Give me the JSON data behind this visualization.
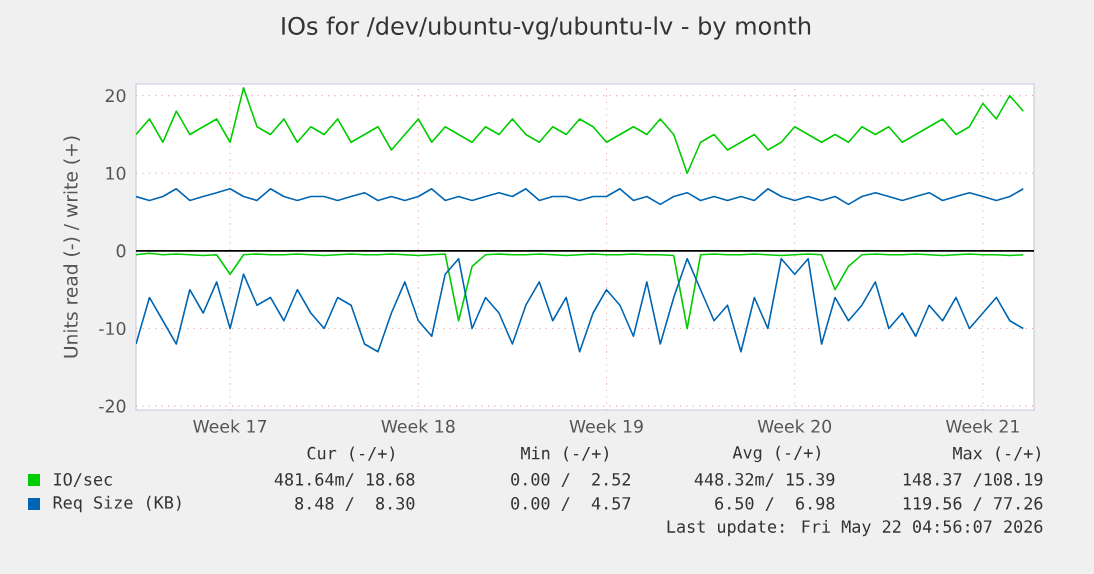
{
  "chart_data": {
    "type": "line",
    "title": "IOs for /dev/ubuntu-vg/ubuntu-lv - by month",
    "ylabel": "Units read (-) / write (+)",
    "categories": [
      null,
      null,
      null,
      null,
      null,
      null,
      null,
      "Week 17",
      null,
      null,
      null,
      null,
      null,
      null,
      null,
      null,
      null,
      null,
      null,
      null,
      null,
      "Week 18",
      null,
      null,
      null,
      null,
      null,
      null,
      null,
      null,
      null,
      null,
      null,
      null,
      null,
      "Week 19",
      null,
      null,
      null,
      null,
      null,
      null,
      null,
      null,
      null,
      null,
      null,
      null,
      null,
      "Week 20",
      null,
      null,
      null,
      null,
      null,
      null,
      null,
      null,
      null,
      null,
      null,
      null,
      null,
      "Week 21",
      null,
      null,
      null
    ],
    "ylim": [
      -20.5,
      21.5
    ],
    "yticks": [
      -20,
      -10,
      0,
      10,
      20
    ],
    "grid": true,
    "legend": "bottom",
    "marker": "none",
    "line_style": "solid",
    "ref_lines": [
      {
        "axis": "y",
        "value": 0,
        "color": "#000000"
      }
    ],
    "series": [
      {
        "name": "IO/sec",
        "color": "#00cc00",
        "values": [
          15,
          17,
          14,
          18,
          15,
          16,
          17,
          14,
          21,
          16,
          15,
          17,
          14,
          16,
          15,
          17,
          14,
          15,
          16,
          13,
          15,
          17,
          14,
          16,
          15,
          14,
          16,
          15,
          17,
          15,
          14,
          16,
          15,
          17,
          16,
          14,
          15,
          16,
          15,
          17,
          15,
          10,
          14,
          15,
          13,
          14,
          15,
          13,
          14,
          16,
          15,
          14,
          15,
          14,
          16,
          15,
          16,
          14,
          15,
          16,
          17,
          15,
          16,
          19,
          17,
          20,
          18
        ]
      },
      {
        "color": "#00cc00",
        "values": [
          -0.5,
          -0.3,
          -0.5,
          -0.4,
          -0.5,
          -0.6,
          -0.5,
          -3,
          -0.5,
          -0.4,
          -0.5,
          -0.5,
          -0.4,
          -0.5,
          -0.6,
          -0.5,
          -0.4,
          -0.5,
          -0.5,
          -0.4,
          -0.5,
          -0.6,
          -0.5,
          -0.4,
          -9,
          -2,
          -0.5,
          -0.4,
          -0.5,
          -0.5,
          -0.4,
          -0.5,
          -0.6,
          -0.5,
          -0.4,
          -0.5,
          -0.5,
          -0.4,
          -0.5,
          -0.5,
          -0.6,
          -10,
          -0.5,
          -0.4,
          -0.5,
          -0.5,
          -0.4,
          -0.5,
          -0.6,
          -0.5,
          -0.4,
          -0.5,
          -5,
          -2,
          -0.5,
          -0.4,
          -0.5,
          -0.5,
          -0.4,
          -0.5,
          -0.6,
          -0.5,
          -0.4,
          -0.5,
          -0.5,
          -0.6,
          -0.5
        ]
      },
      {
        "name": "Req Size (KB)",
        "color": "#0066b3",
        "values": [
          7,
          6.5,
          7,
          8,
          6.5,
          7,
          7.5,
          8,
          7,
          6.5,
          8,
          7,
          6.5,
          7,
          7,
          6.5,
          7,
          7.5,
          6.5,
          7,
          6.5,
          7,
          8,
          6.5,
          7,
          6.5,
          7,
          7.5,
          7,
          8,
          6.5,
          7,
          7,
          6.5,
          7,
          7,
          8,
          6.5,
          7,
          6,
          7,
          7.5,
          6.5,
          7,
          6.5,
          7,
          6.5,
          8,
          7,
          6.5,
          7,
          6.5,
          7,
          6,
          7,
          7.5,
          7,
          6.5,
          7,
          7.5,
          6.5,
          7,
          7.5,
          7,
          6.5,
          7,
          8
        ]
      },
      {
        "color": "#0066b3",
        "values": [
          -12,
          -6,
          -9,
          -12,
          -5,
          -8,
          -4,
          -10,
          -3,
          -7,
          -6,
          -9,
          -5,
          -8,
          -10,
          -6,
          -7,
          -12,
          -13,
          -8,
          -4,
          -9,
          -11,
          -3,
          -1,
          -10,
          -6,
          -8,
          -12,
          -7,
          -4,
          -9,
          -6,
          -13,
          -8,
          -5,
          -7,
          -11,
          -4,
          -12,
          -6,
          -1,
          -5,
          -9,
          -7,
          -13,
          -6,
          -10,
          -1,
          -3,
          -1,
          -12,
          -6,
          -9,
          -7,
          -4,
          -10,
          -8,
          -11,
          -7,
          -9,
          -6,
          -10,
          -8,
          -6,
          -9,
          -10
        ]
      }
    ],
    "annotations": [
      "Cur (-/+)",
      "Min (-/+)",
      "Avg (-/+)",
      "Max (-/+)",
      "481.64m/ 18.68",
      "0.00 /  2.52",
      "448.32m/ 15.39",
      "148.37 /108.19",
      "8.48 /  8.30",
      "0.00 /  4.57",
      "6.50 /  6.98",
      "119.56 / 77.26",
      "Last update: Fri May 22 04:56:07 2026"
    ]
  }
}
